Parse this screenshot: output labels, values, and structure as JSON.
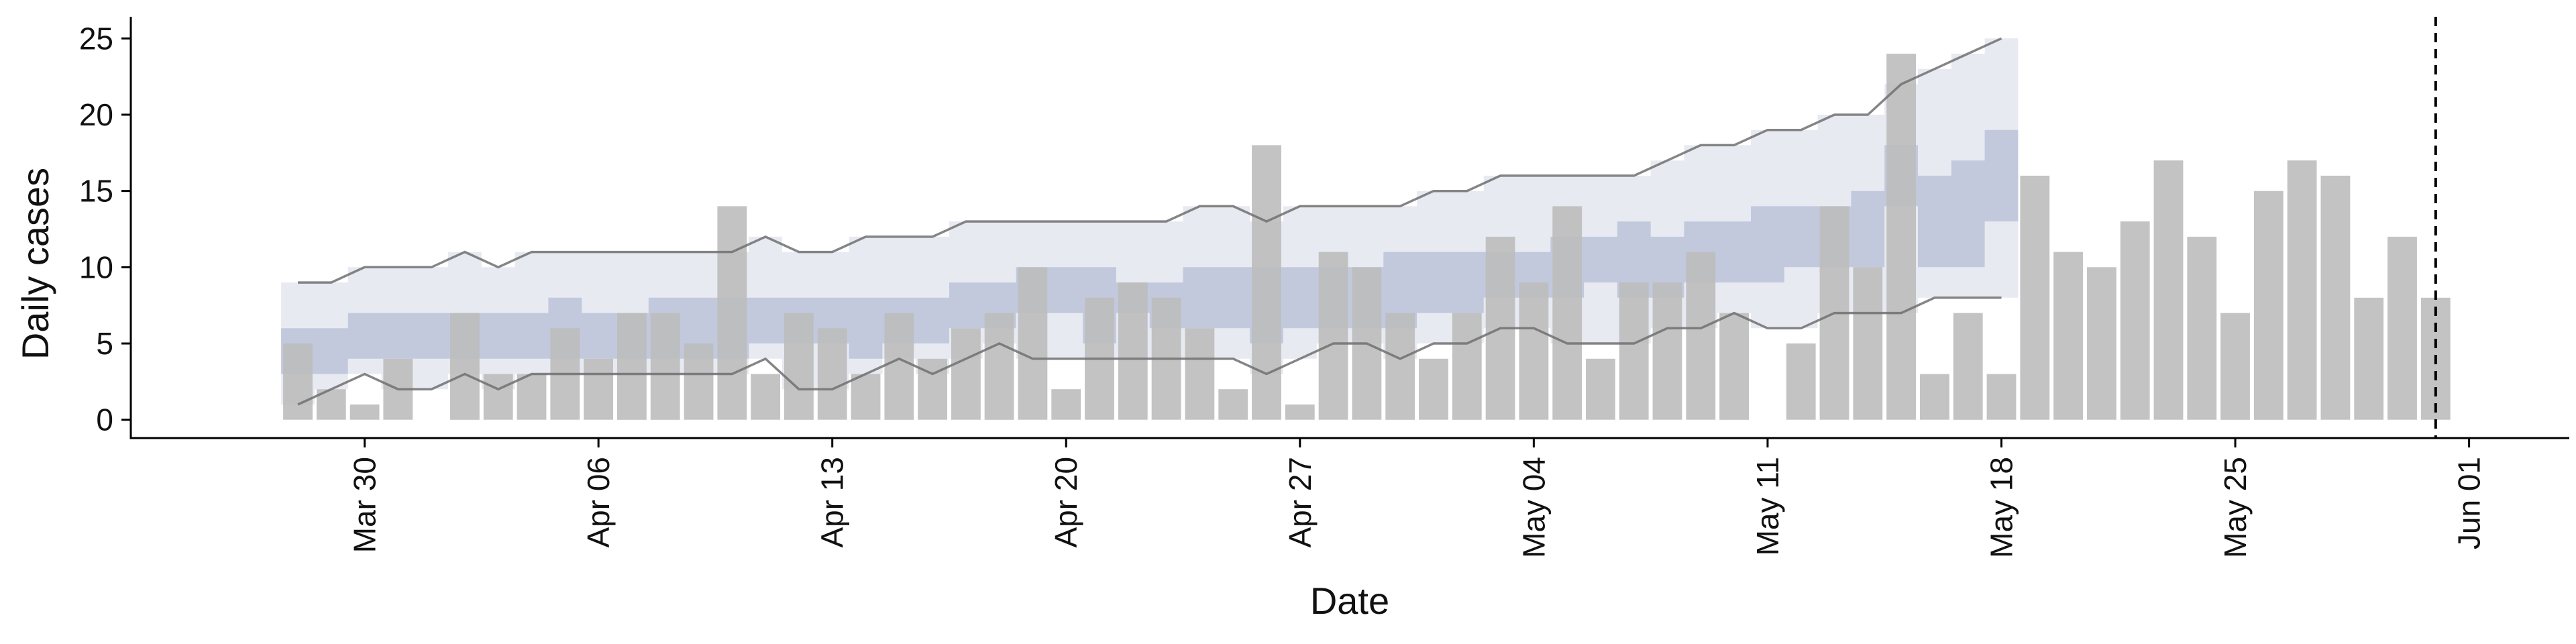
{
  "chart_data": {
    "type": "bar",
    "title": "",
    "xlabel": "Date",
    "ylabel": "Daily cases",
    "ylim": [
      -1.2,
      26.2
    ],
    "yticks": [
      0,
      5,
      10,
      15,
      20,
      25
    ],
    "xlim": [
      "2020-03-23",
      "2020-06-04"
    ],
    "xticks": [
      {
        "date": "2020-03-30",
        "label": "Mar 30"
      },
      {
        "date": "2020-04-06",
        "label": "Apr 06"
      },
      {
        "date": "2020-04-13",
        "label": "Apr 13"
      },
      {
        "date": "2020-04-20",
        "label": "Apr 20"
      },
      {
        "date": "2020-04-27",
        "label": "Apr 27"
      },
      {
        "date": "2020-05-04",
        "label": "May 04"
      },
      {
        "date": "2020-05-11",
        "label": "May 11"
      },
      {
        "date": "2020-05-18",
        "label": "May 18"
      },
      {
        "date": "2020-05-25",
        "label": "May 25"
      },
      {
        "date": "2020-06-01",
        "label": "Jun 01"
      }
    ],
    "grid": false,
    "bars": {
      "start_date": "2020-03-28",
      "values": [
        5,
        2,
        1,
        4,
        null,
        7,
        3,
        3,
        6,
        4,
        7,
        7,
        5,
        14,
        3,
        7,
        6,
        3,
        7,
        4,
        6,
        7,
        10,
        2,
        8,
        9,
        8,
        6,
        2,
        18,
        1,
        11,
        10,
        7,
        4,
        7,
        12,
        9,
        14,
        4,
        9,
        9,
        11,
        7,
        null,
        5,
        14,
        10,
        24,
        3,
        7,
        3,
        16,
        11,
        10,
        13,
        17,
        12,
        7,
        15,
        17,
        16,
        8,
        12,
        8
      ],
      "color": "#bdbdbd"
    },
    "forecast": {
      "start_date": "2020-03-28",
      "outer_upper": [
        9,
        9,
        10,
        10,
        10,
        11,
        10,
        11,
        11,
        11,
        11,
        11,
        11,
        11,
        12,
        11,
        11,
        12,
        12,
        12,
        13,
        13,
        13,
        13,
        13,
        13,
        13,
        14,
        14,
        13,
        14,
        14,
        14,
        14,
        15,
        15,
        16,
        16,
        16,
        16,
        16,
        17,
        18,
        18,
        19,
        19,
        20,
        20,
        22,
        23,
        24,
        25
      ],
      "outer_lower": [
        1,
        2,
        3,
        2,
        2,
        3,
        2,
        3,
        3,
        3,
        3,
        3,
        3,
        3,
        4,
        2,
        2,
        3,
        4,
        3,
        4,
        5,
        4,
        4,
        4,
        4,
        4,
        4,
        4,
        3,
        4,
        5,
        5,
        4,
        5,
        5,
        6,
        6,
        5,
        5,
        5,
        6,
        6,
        7,
        6,
        6,
        7,
        7,
        7,
        8,
        8,
        8
      ],
      "inner_upper": [
        6,
        6,
        7,
        7,
        7,
        7,
        7,
        7,
        8,
        7,
        7,
        8,
        8,
        8,
        8,
        8,
        8,
        8,
        8,
        8,
        9,
        9,
        10,
        10,
        10,
        9,
        9,
        10,
        10,
        10,
        10,
        10,
        10,
        11,
        11,
        11,
        11,
        11,
        12,
        12,
        13,
        12,
        13,
        13,
        14,
        14,
        14,
        15,
        18,
        16,
        17,
        19
      ],
      "inner_lower": [
        3,
        3,
        4,
        4,
        4,
        4,
        4,
        4,
        4,
        4,
        4,
        4,
        4,
        4,
        5,
        5,
        5,
        4,
        5,
        5,
        6,
        6,
        7,
        7,
        5,
        7,
        6,
        6,
        6,
        5,
        6,
        6,
        6,
        6,
        7,
        7,
        8,
        8,
        8,
        9,
        8,
        8,
        9,
        9,
        9,
        10,
        10,
        10,
        14,
        10,
        10,
        13
      ],
      "outer_color": "#e8eaf2",
      "inner_color": "#c3c9dd",
      "line_color": "#707070"
    },
    "vline": {
      "date": "2020-05-31",
      "style": "dashed",
      "color": "#000000"
    }
  }
}
